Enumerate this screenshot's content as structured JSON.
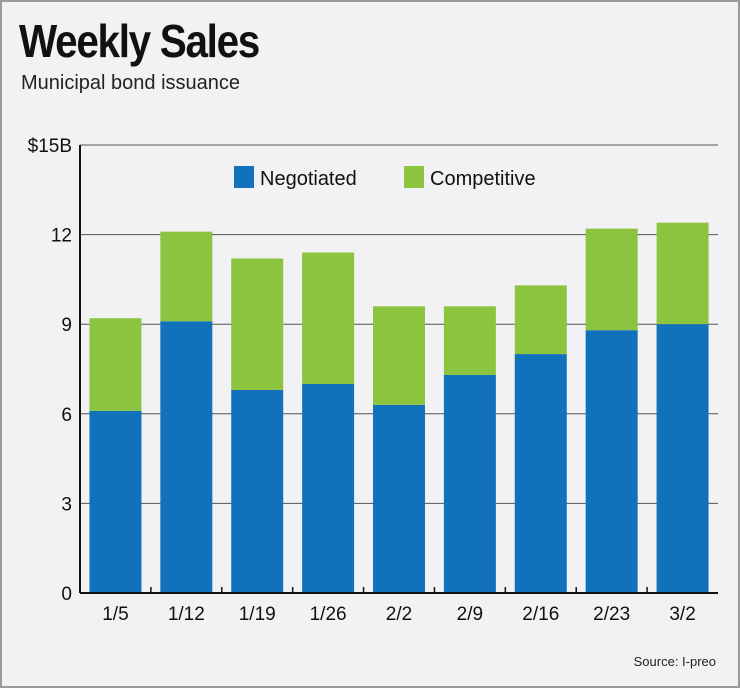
{
  "chart_data": {
    "type": "bar",
    "stacked": true,
    "title": "Weekly Sales",
    "subtitle": "Municipal bond issuance",
    "source": "Source: I-preo",
    "categories": [
      "1/5",
      "1/12",
      "1/19",
      "1/26",
      "2/2",
      "2/9",
      "2/16",
      "2/23",
      "3/2"
    ],
    "series": [
      {
        "name": "Negotiated",
        "color": "#1172bb",
        "values": [
          6.1,
          9.1,
          6.8,
          7.0,
          6.3,
          7.3,
          8.0,
          8.8,
          9.0
        ]
      },
      {
        "name": "Competitive",
        "color": "#8cc43f",
        "values": [
          3.1,
          3.0,
          4.4,
          4.4,
          3.3,
          2.3,
          2.3,
          3.4,
          3.4
        ]
      }
    ],
    "ylim": [
      0,
      15
    ],
    "yticks": [
      0,
      3,
      6,
      9,
      12,
      15
    ],
    "ytick_labels": [
      "0",
      "3",
      "6",
      "9",
      "12",
      "$15B"
    ],
    "grid": true,
    "legend": "top"
  }
}
